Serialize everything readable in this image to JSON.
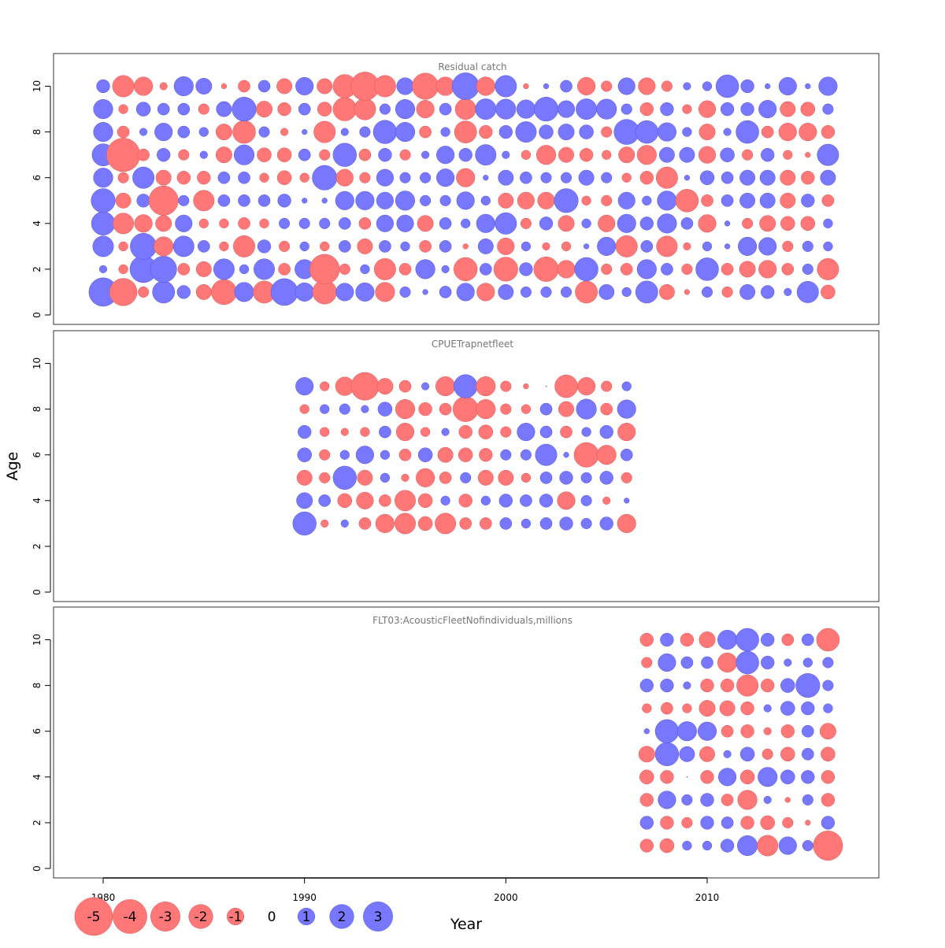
{
  "chart_data": {
    "type": "scatter",
    "subtype": "bubble-residuals",
    "xlabel": "Year",
    "ylabel": "Age",
    "xticks": [
      1980,
      1990,
      2000,
      2010
    ],
    "yticks": [
      0,
      2,
      4,
      6,
      8,
      10
    ],
    "ylim": [
      0,
      11
    ],
    "colors": {
      "positive": "#7777ff",
      "negative": "#ff7777"
    },
    "legend": {
      "placement": "bottom-left",
      "values": [
        "-5",
        "-4",
        "-3",
        "-2",
        "-1",
        "0",
        "1",
        "2",
        "3"
      ]
    },
    "panels": [
      {
        "title": "Residual catch",
        "years": [
          1980,
          1981,
          1982,
          1983,
          1984,
          1985,
          1986,
          1987,
          1988,
          1989,
          1990,
          1991,
          1992,
          1993,
          1994,
          1995,
          1996,
          1997,
          1998,
          1999,
          2000,
          2001,
          2002,
          2003,
          2004,
          2005,
          2006,
          2007,
          2008,
          2009,
          2010,
          2011,
          2012,
          2013,
          2014,
          2015,
          2016
        ],
        "ages": [
          1,
          2,
          3,
          4,
          5,
          6,
          7,
          8,
          9,
          10
        ],
        "residuals": [
          [
            2.8,
            0.2,
            1.5,
            1.9,
            2.0,
            1.3,
            1.7,
            1.3,
            1.3,
            0.6
          ],
          [
            -2.6,
            -0.3,
            -0.3,
            -1.5,
            -0.8,
            -0.4,
            -3.9,
            -0.5,
            -0.3,
            -1.6
          ],
          [
            -0.4,
            2.5,
            2.4,
            -1.1,
            0.6,
            1.6,
            -0.5,
            0.2,
            0.7,
            -1.2
          ],
          [
            1.7,
            2.4,
            -1.3,
            -0.9,
            -3.0,
            -0.8,
            0.6,
            1.1,
            0.5,
            -0.2
          ],
          [
            0.6,
            -0.5,
            1.5,
            1.0,
            0.4,
            -0.6,
            -0.4,
            0.5,
            0.5,
            1.3
          ],
          [
            -0.8,
            -0.8,
            0.5,
            -0.3,
            -1.5,
            -0.6,
            0.2,
            0.3,
            -0.4,
            0.9
          ],
          [
            -2.2,
            1.5,
            -0.3,
            -0.3,
            0.5,
            0.5,
            -0.9,
            -0.9,
            0.8,
            -0.1
          ],
          [
            1.3,
            0.3,
            -1.6,
            -0.5,
            0.5,
            0.5,
            1.4,
            -1.8,
            2.0,
            -0.5
          ],
          [
            -1.7,
            1.5,
            0.6,
            -0.3,
            0.5,
            -0.3,
            -0.7,
            0.4,
            -0.9,
            0.5
          ],
          [
            2.5,
            -0.5,
            -0.4,
            0.4,
            0.6,
            -0.7,
            -0.7,
            -0.2,
            -0.6,
            -0.8
          ],
          [
            1.2,
            1.3,
            0.3,
            0.4,
            0.1,
            -0.3,
            0.5,
            0.1,
            0.5,
            1.1
          ],
          [
            -2.0,
            -3.1,
            -0.3,
            0.4,
            0.1,
            2.1,
            -0.4,
            -1.6,
            -0.7,
            -0.8
          ],
          [
            1.1,
            -0.4,
            0.5,
            0.5,
            1.2,
            -1.0,
            1.9,
            0.2,
            -1.9,
            -1.9
          ],
          [
            1.2,
            0.3,
            -0.8,
            -0.5,
            1.2,
            -0.4,
            -0.5,
            0.4,
            -1.6,
            -2.8
          ],
          [
            -1.3,
            -1.6,
            0.5,
            1.0,
            1.0,
            1.0,
            0.6,
            1.9,
            0.4,
            -1.6
          ],
          [
            0.4,
            -0.5,
            0.3,
            1.0,
            1.3,
            0.4,
            -0.4,
            1.3,
            1.3,
            1.0
          ],
          [
            0.1,
            1.3,
            -0.5,
            -0.9,
            0.4,
            0.4,
            0.2,
            -0.5,
            -1.1,
            -2.4
          ],
          [
            0.5,
            0.2,
            0.5,
            0.5,
            0.4,
            1.1,
            1.1,
            0.3,
            0.5,
            -1.2
          ],
          [
            1.1,
            -1.9,
            -0.1,
            0.3,
            1.1,
            -1.2,
            0.6,
            -1.7,
            -1.5,
            2.5
          ],
          [
            -1.1,
            0.5,
            0.8,
            1.2,
            0.3,
            0.1,
            1.5,
            -0.6,
            1.5,
            -1.2
          ],
          [
            0.8,
            -2.0,
            -1.0,
            1.6,
            -0.8,
            0.8,
            0.2,
            0.6,
            1.4,
            1.6
          ],
          [
            0.4,
            0.6,
            0.3,
            -0.4,
            -1.0,
            0.5,
            -0.3,
            1.5,
            1.2,
            -0.1
          ],
          [
            0.4,
            -2.1,
            -0.2,
            0.6,
            -1.0,
            0.4,
            -1.3,
            0.7,
            2.0,
            0.1
          ],
          [
            0.4,
            -1.1,
            -0.3,
            -0.9,
            2.0,
            0.4,
            -0.8,
            0.9,
            1.0,
            0.5
          ],
          [
            -1.7,
            1.9,
            0.1,
            0.3,
            -0.3,
            0.8,
            -0.6,
            0.7,
            1.5,
            -1.1
          ],
          [
            0.8,
            -0.4,
            1.2,
            -1.0,
            -0.4,
            0.4,
            -0.3,
            -0.4,
            1.4,
            -0.4
          ],
          [
            0.3,
            -0.5,
            -1.6,
            1.2,
            1.0,
            -0.3,
            -0.9,
            2.2,
            0.4,
            1.0
          ],
          [
            1.7,
            1.3,
            0.5,
            0.6,
            0.3,
            -0.6,
            -1.3,
            1.8,
            -0.6,
            -1.0
          ],
          [
            -0.8,
            0.5,
            -1.5,
            1.3,
            1.3,
            -1.6,
            0.8,
            1.2,
            0.6,
            -0.4
          ],
          [
            -0.1,
            -0.4,
            -0.2,
            0.5,
            -1.8,
            0.1,
            0.8,
            0.3,
            -0.3,
            0.2
          ],
          [
            0.4,
            1.8,
            0.3,
            -1.1,
            -0.5,
            0.7,
            -1.0,
            -0.9,
            -1.0,
            0.3
          ],
          [
            -0.4,
            -0.5,
            0.1,
            0.1,
            0.5,
            0.5,
            0.7,
            0.2,
            0.6,
            1.8
          ],
          [
            0.8,
            -0.9,
            1.2,
            -0.4,
            0.8,
            0.8,
            -0.4,
            1.8,
            0.6,
            0.6
          ],
          [
            0.6,
            -1.1,
            1.1,
            -0.9,
            0.8,
            0.8,
            0.6,
            -0.5,
            1.1,
            0.1
          ],
          [
            0.2,
            -0.5,
            -0.4,
            -0.7,
            -0.8,
            -0.8,
            -0.3,
            -1.1,
            -0.8,
            1.1
          ],
          [
            1.6,
            0.4,
            0.4,
            -0.7,
            0.6,
            -0.6,
            -0.1,
            -1.1,
            -0.7,
            0.1
          ],
          [
            -0.7,
            -1.6,
            0.3,
            0.3,
            -0.5,
            0.8,
            1.6,
            -0.6,
            0.4,
            1.2
          ]
        ]
      },
      {
        "title": "CPUETrapnetfleet",
        "years": [
          1990,
          1991,
          1992,
          1993,
          1994,
          1995,
          1996,
          1997,
          1998,
          1999,
          2000,
          2001,
          2002,
          2003,
          2004,
          2005,
          2006
        ],
        "ages": [
          3,
          4,
          5,
          6,
          7,
          8,
          9
        ],
        "residuals": [
          [
            1.9,
            0.9,
            -0.8,
            0.7,
            0.6,
            -0.3,
            1.1
          ],
          [
            -0.2,
            0.5,
            -0.4,
            -0.4,
            -0.3,
            0.3,
            -0.3
          ],
          [
            0.2,
            -0.7,
            1.9,
            0.3,
            -0.2,
            0.4,
            -1.2
          ],
          [
            -0.5,
            -1.0,
            -0.8,
            1.1,
            -0.3,
            0.2,
            -2.7
          ],
          [
            -1.2,
            -0.5,
            0.3,
            0.3,
            0.5,
            0.7,
            -0.9
          ],
          [
            -1.5,
            -1.5,
            -0.2,
            -0.5,
            -1.1,
            -1.3,
            -0.5
          ],
          [
            -0.7,
            -0.7,
            -1.2,
            0.7,
            -0.3,
            -0.6,
            0.2
          ],
          [
            -1.5,
            0.3,
            -0.5,
            -0.8,
            0.2,
            -0.5,
            -1.3
          ],
          [
            -0.5,
            -0.6,
            0.4,
            -0.7,
            -0.6,
            -2.2,
            1.9
          ],
          [
            -0.5,
            0.3,
            -0.8,
            -0.6,
            -0.7,
            -1.3,
            -1.3
          ],
          [
            0.5,
            0.6,
            -0.8,
            0.4,
            -0.4,
            -0.4,
            -0.4
          ],
          [
            0.3,
            0.5,
            -0.3,
            0.4,
            1.1,
            -0.3,
            -0.1
          ],
          [
            0.5,
            0.6,
            0.5,
            1.6,
            0.5,
            0.5,
            0.0
          ],
          [
            0.6,
            -1.1,
            0.6,
            0.1,
            -0.5,
            -0.8,
            -1.8
          ],
          [
            0.4,
            0.4,
            0.4,
            -2.1,
            0.3,
            1.4,
            -1.1
          ],
          [
            0.6,
            -0.2,
            0.6,
            -1.3,
            0.6,
            -0.5,
            -0.4
          ],
          [
            -1.2,
            0.1,
            -0.4,
            0.5,
            -1.1,
            1.2,
            0.3
          ]
        ]
      },
      {
        "title": "FLT03:AcousticFleetNofindividuals,millions",
        "years": [
          2007,
          2008,
          2009,
          2010,
          2011,
          2012,
          2013,
          2014,
          2015,
          2016
        ],
        "ages": [
          1,
          2,
          3,
          4,
          5,
          6,
          7,
          8,
          9,
          10
        ],
        "residuals": [
          [
            -0.6,
            0.6,
            -0.6,
            -0.7,
            -0.9,
            0.1,
            -0.3,
            0.6,
            -0.4,
            -0.6
          ],
          [
            -0.7,
            -0.6,
            1.1,
            -0.6,
            1.9,
            1.9,
            -0.5,
            0.6,
            1.1,
            0.6
          ],
          [
            0.3,
            -0.4,
            0.4,
            0.0,
            0.8,
            1.3,
            -0.3,
            0.2,
            0.5,
            -0.6
          ],
          [
            0.3,
            0.6,
            0.6,
            -0.6,
            -0.8,
            1.2,
            -0.9,
            -0.6,
            0.5,
            -0.9
          ],
          [
            0.6,
            0.5,
            -0.5,
            1.1,
            0.2,
            -0.5,
            -0.8,
            -0.6,
            -1.3,
            1.3
          ],
          [
            1.4,
            -0.6,
            -1.3,
            -0.7,
            0.7,
            -0.6,
            -0.6,
            -1.6,
            1.8,
            1.8
          ],
          [
            -1.5,
            -0.7,
            0.2,
            1.3,
            -0.4,
            -0.2,
            0.2,
            -0.6,
            0.6,
            0.6
          ],
          [
            1.1,
            -0.4,
            -0.1,
            0.7,
            -0.7,
            -0.6,
            0.7,
            0.7,
            0.2,
            -0.5
          ],
          [
            0.4,
            -0.1,
            0.4,
            0.6,
            0.5,
            0.5,
            0.6,
            2.0,
            0.3,
            0.5
          ],
          [
            -3.0,
            0.6,
            -0.6,
            -0.6,
            -0.7,
            -0.9,
            0.3,
            0.4,
            0.4,
            -1.8
          ]
        ]
      }
    ]
  }
}
